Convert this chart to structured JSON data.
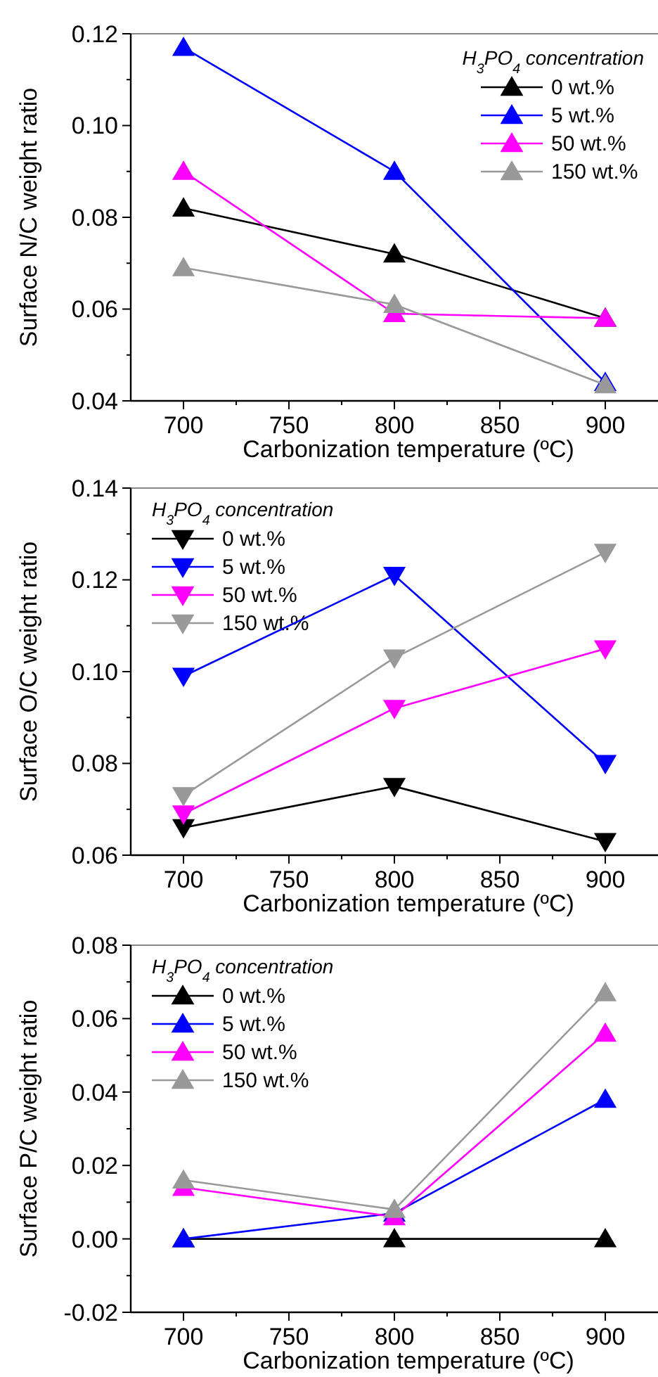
{
  "chart_data": [
    {
      "type": "line",
      "xlabel": "Carbonization temperature (ºC)",
      "ylabel": "Surface N/C weight ratio",
      "legend_title": "H$_{3}$PO$_{4}$ concentration",
      "legend": "top right",
      "marker": "triangle",
      "x": [
        700,
        800,
        900
      ],
      "xlim": [
        675,
        925
      ],
      "xticks": [
        700,
        {
          "value": 725,
          "label": null
        },
        750,
        {
          "value": 775,
          "label": null
        },
        800,
        {
          "value": 825,
          "label": null
        },
        850,
        {
          "value": 875,
          "label": null
        },
        900
      ],
      "ylim": [
        0.04,
        0.12
      ],
      "yticks": [
        {
          "value": 0.04,
          "label": "0.04"
        },
        {
          "value": 0.05,
          "label": null
        },
        {
          "value": 0.06,
          "label": "0.06"
        },
        {
          "value": 0.07,
          "label": null
        },
        {
          "value": 0.08,
          "label": "0.08"
        },
        {
          "value": 0.09,
          "label": null
        },
        {
          "value": 0.1,
          "label": "0.10"
        },
        {
          "value": 0.11,
          "label": null
        },
        {
          "value": 0.12,
          "label": "0.12"
        }
      ],
      "series": [
        {
          "name": "0 wt.%",
          "color": "#000000",
          "values": [
            0.082,
            0.072,
            0.058
          ]
        },
        {
          "name": "5 wt.%",
          "color": "#0000ff",
          "values": [
            0.117,
            0.09,
            0.044
          ]
        },
        {
          "name": "50 wt.%",
          "color": "#ff00ff",
          "values": [
            0.09,
            0.059,
            0.058
          ]
        },
        {
          "name": "150 wt.%",
          "color": "#999999",
          "values": [
            0.069,
            0.061,
            0.0435
          ]
        }
      ]
    },
    {
      "type": "line",
      "xlabel": "Carbonization temperature (ºC)",
      "ylabel": "Surface O/C weight ratio",
      "legend_title": "H$_{3}$PO$_{4}$ concentration",
      "legend": "top left",
      "marker": "triangle-down",
      "x": [
        700,
        800,
        900
      ],
      "xlim": [
        675,
        925
      ],
      "xticks": [
        700,
        {
          "value": 725,
          "label": null
        },
        750,
        {
          "value": 775,
          "label": null
        },
        800,
        {
          "value": 825,
          "label": null
        },
        850,
        {
          "value": 875,
          "label": null
        },
        900
      ],
      "ylim": [
        0.06,
        0.14
      ],
      "yticks": [
        {
          "value": 0.06,
          "label": "0.06"
        },
        {
          "value": 0.07,
          "label": null
        },
        {
          "value": 0.08,
          "label": "0.08"
        },
        {
          "value": 0.09,
          "label": null
        },
        {
          "value": 0.1,
          "label": "0.10"
        },
        {
          "value": 0.11,
          "label": null
        },
        {
          "value": 0.12,
          "label": "0.12"
        },
        {
          "value": 0.13,
          "label": null
        },
        {
          "value": 0.14,
          "label": "0.14"
        }
      ],
      "series": [
        {
          "name": "0 wt.%",
          "color": "#000000",
          "values": [
            0.066,
            0.075,
            0.063
          ]
        },
        {
          "name": "5 wt.%",
          "color": "#0000ff",
          "values": [
            0.099,
            0.121,
            0.08
          ]
        },
        {
          "name": "50 wt.%",
          "color": "#ff00ff",
          "values": [
            0.069,
            0.092,
            0.105
          ]
        },
        {
          "name": "150 wt.%",
          "color": "#999999",
          "values": [
            0.073,
            0.103,
            0.126
          ]
        }
      ]
    },
    {
      "type": "line",
      "xlabel": "Carbonization temperature (ºC)",
      "ylabel": "Surface P/C weight ratio",
      "legend_title": "H$_{3}$PO$_{4}$ concentration",
      "legend": "top left",
      "marker": "triangle",
      "x": [
        700,
        800,
        900
      ],
      "xlim": [
        675,
        925
      ],
      "xticks": [
        700,
        {
          "value": 725,
          "label": null
        },
        750,
        {
          "value": 775,
          "label": null
        },
        800,
        {
          "value": 825,
          "label": null
        },
        850,
        {
          "value": 875,
          "label": null
        },
        900
      ],
      "ylim": [
        -0.02,
        0.08
      ],
      "yticks": [
        {
          "value": -0.02,
          "label": "-0.02"
        },
        {
          "value": -0.01,
          "label": null
        },
        {
          "value": 0,
          "label": "0.00"
        },
        {
          "value": 0.01,
          "label": null
        },
        {
          "value": 0.02,
          "label": "0.02"
        },
        {
          "value": 0.03,
          "label": null
        },
        {
          "value": 0.04,
          "label": "0.04"
        },
        {
          "value": 0.05,
          "label": null
        },
        {
          "value": 0.06,
          "label": "0.06"
        },
        {
          "value": 0.07,
          "label": null
        },
        {
          "value": 0.08,
          "label": "0.08"
        }
      ],
      "series": [
        {
          "name": "0 wt.%",
          "color": "#000000",
          "values": [
            0,
            0,
            0
          ]
        },
        {
          "name": "5 wt.%",
          "color": "#0000ff",
          "values": [
            0,
            0.007,
            0.038
          ]
        },
        {
          "name": "50 wt.%",
          "color": "#ff00ff",
          "values": [
            0.014,
            0.006,
            0.056
          ]
        },
        {
          "name": "150 wt.%",
          "color": "#999999",
          "values": [
            0.016,
            0.008,
            0.067
          ]
        }
      ]
    }
  ]
}
